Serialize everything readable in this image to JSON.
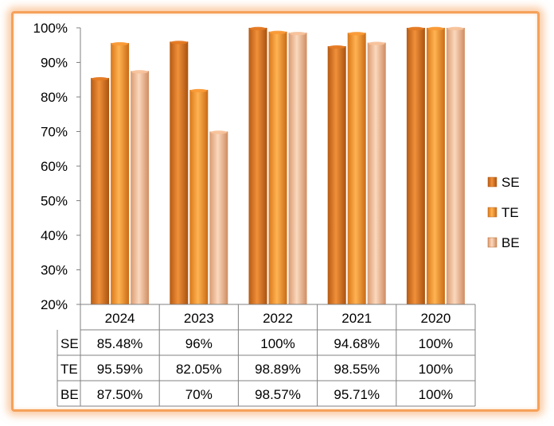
{
  "chart_data": {
    "type": "bar",
    "categories": [
      "2024",
      "2023",
      "2022",
      "2021",
      "2020"
    ],
    "series": [
      {
        "name": "SE",
        "values": [
          85.48,
          96,
          100,
          94.68,
          100
        ],
        "labels": [
          "85.48%",
          "96%",
          "100%",
          "94.68%",
          "100%"
        ],
        "color": "#e47a22"
      },
      {
        "name": "TE",
        "values": [
          95.59,
          82.05,
          98.89,
          98.55,
          100
        ],
        "labels": [
          "95.59%",
          "82.05%",
          "98.89%",
          "98.55%",
          "100%"
        ],
        "color": "#f99a36"
      },
      {
        "name": "BE",
        "values": [
          87.5,
          70,
          98.57,
          95.71,
          100
        ],
        "labels": [
          "87.50%",
          "70%",
          "98.57%",
          "95.71%",
          "100%"
        ],
        "color": "#f7c29a"
      }
    ],
    "ylim": [
      20,
      100
    ],
    "yticks": [
      "20%",
      "30%",
      "40%",
      "50%",
      "60%",
      "70%",
      "80%",
      "90%",
      "100%"
    ],
    "legend_position": "right",
    "data_table": true,
    "grid": false
  }
}
